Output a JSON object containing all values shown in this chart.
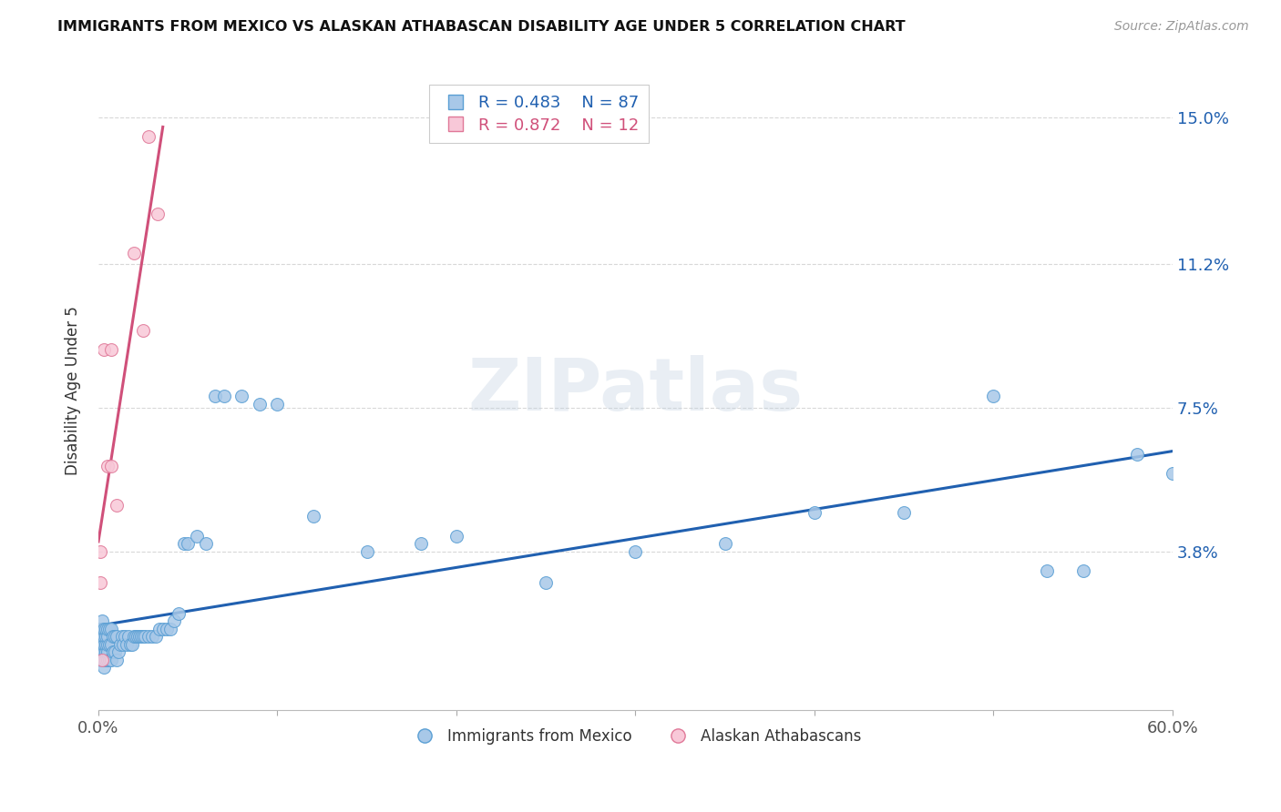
{
  "title": "IMMIGRANTS FROM MEXICO VS ALASKAN ATHABASCAN DISABILITY AGE UNDER 5 CORRELATION CHART",
  "source": "Source: ZipAtlas.com",
  "ylabel": "Disability Age Under 5",
  "xlim": [
    0,
    0.6
  ],
  "ylim": [
    -0.003,
    0.162
  ],
  "ytick_positions": [
    0.038,
    0.075,
    0.112,
    0.15
  ],
  "ytick_labels": [
    "3.8%",
    "7.5%",
    "11.2%",
    "15.0%"
  ],
  "blue_color": "#a8c8e8",
  "blue_edge": "#5a9fd4",
  "pink_color": "#f8c8d8",
  "pink_edge": "#e07898",
  "blue_line_color": "#2060b0",
  "pink_line_color": "#d0507a",
  "R_blue": 0.483,
  "N_blue": 87,
  "R_pink": 0.872,
  "N_pink": 12,
  "legend_blue": "Immigrants from Mexico",
  "legend_pink": "Alaskan Athabascans",
  "watermark": "ZIPatlas",
  "blue_scatter_x": [
    0.001,
    0.001,
    0.001,
    0.001,
    0.001,
    0.002,
    0.002,
    0.002,
    0.002,
    0.002,
    0.002,
    0.003,
    0.003,
    0.003,
    0.003,
    0.003,
    0.003,
    0.004,
    0.004,
    0.004,
    0.004,
    0.004,
    0.005,
    0.005,
    0.005,
    0.005,
    0.005,
    0.006,
    0.006,
    0.006,
    0.007,
    0.007,
    0.007,
    0.008,
    0.008,
    0.009,
    0.009,
    0.01,
    0.01,
    0.011,
    0.012,
    0.013,
    0.014,
    0.015,
    0.016,
    0.017,
    0.018,
    0.019,
    0.02,
    0.021,
    0.022,
    0.023,
    0.024,
    0.025,
    0.026,
    0.028,
    0.03,
    0.032,
    0.034,
    0.036,
    0.038,
    0.04,
    0.042,
    0.045,
    0.048,
    0.05,
    0.055,
    0.06,
    0.065,
    0.07,
    0.08,
    0.09,
    0.1,
    0.12,
    0.15,
    0.18,
    0.2,
    0.25,
    0.3,
    0.35,
    0.4,
    0.45,
    0.5,
    0.53,
    0.55,
    0.58,
    0.6
  ],
  "blue_scatter_y": [
    0.01,
    0.012,
    0.014,
    0.016,
    0.018,
    0.01,
    0.012,
    0.014,
    0.016,
    0.018,
    0.02,
    0.008,
    0.01,
    0.012,
    0.014,
    0.016,
    0.018,
    0.01,
    0.012,
    0.014,
    0.016,
    0.018,
    0.01,
    0.012,
    0.014,
    0.016,
    0.018,
    0.01,
    0.014,
    0.018,
    0.01,
    0.014,
    0.018,
    0.012,
    0.016,
    0.012,
    0.016,
    0.01,
    0.016,
    0.012,
    0.014,
    0.016,
    0.014,
    0.016,
    0.014,
    0.016,
    0.014,
    0.014,
    0.016,
    0.016,
    0.016,
    0.016,
    0.016,
    0.016,
    0.016,
    0.016,
    0.016,
    0.016,
    0.018,
    0.018,
    0.018,
    0.018,
    0.02,
    0.022,
    0.04,
    0.04,
    0.042,
    0.04,
    0.078,
    0.078,
    0.078,
    0.076,
    0.076,
    0.047,
    0.038,
    0.04,
    0.042,
    0.03,
    0.038,
    0.04,
    0.048,
    0.048,
    0.078,
    0.033,
    0.033,
    0.063,
    0.058
  ],
  "pink_scatter_x": [
    0.001,
    0.001,
    0.002,
    0.003,
    0.005,
    0.007,
    0.007,
    0.01,
    0.02,
    0.025,
    0.028,
    0.033
  ],
  "pink_scatter_y": [
    0.038,
    0.03,
    0.01,
    0.09,
    0.06,
    0.06,
    0.09,
    0.05,
    0.115,
    0.095,
    0.145,
    0.125
  ]
}
